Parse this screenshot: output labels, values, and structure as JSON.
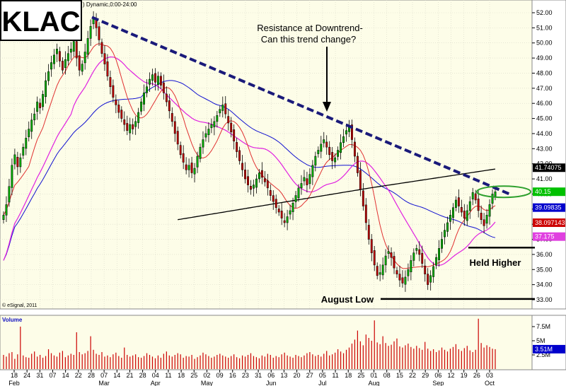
{
  "chart_data": {
    "type": "candlestick",
    "ticker": "KLAC",
    "header": ") Dynamic,0:00-24:00",
    "copyright": "© eSignal, 2011",
    "volume_label": "Volume",
    "y_ticks": [
      "52.00",
      "51.00",
      "50.00",
      "49.00",
      "48.00",
      "47.00",
      "46.00",
      "45.00",
      "44.00",
      "43.00",
      "42.00",
      "41.00",
      "40.00",
      "39.00",
      "38.00",
      "37.00",
      "36.00",
      "35.00",
      "34.00",
      "33.00"
    ],
    "ylim": [
      33,
      52.5
    ],
    "volume_ticks": [
      "7.5M",
      "5M",
      "2.5M"
    ],
    "volume_max": 9,
    "x_ticks": [
      "18",
      "24",
      "31",
      "07",
      "14",
      "22",
      "28",
      "07",
      "14",
      "21",
      "28",
      "04",
      "11",
      "18",
      "25",
      "02",
      "09",
      "16",
      "23",
      "31",
      "06",
      "13",
      "20",
      "27",
      "05",
      "11",
      "18",
      "25",
      "01",
      "08",
      "15",
      "22",
      "29",
      "06",
      "12",
      "19",
      "26",
      "03"
    ],
    "months": [
      {
        "label": "Feb",
        "tick": 0
      },
      {
        "label": "Mar",
        "tick": 7
      },
      {
        "label": "Apr",
        "tick": 11
      },
      {
        "label": "May",
        "tick": 15
      },
      {
        "label": "Jun",
        "tick": 20
      },
      {
        "label": "Jul",
        "tick": 24
      },
      {
        "label": "Aug",
        "tick": 28
      },
      {
        "label": "Sep",
        "tick": 33
      },
      {
        "label": "Oct",
        "tick": 37
      }
    ],
    "price_tags": [
      {
        "label": "41.74075",
        "value": 41.74,
        "bg": "#000000",
        "fg": "#ffffff"
      },
      {
        "label": "40.15",
        "value": 40.15,
        "bg": "#00c000",
        "fg": "#ffffff"
      },
      {
        "label": "39.09835",
        "value": 39.1,
        "bg": "#0000cc",
        "fg": "#ffffff"
      },
      {
        "label": "38.097143",
        "value": 38.1,
        "bg": "#cc0000",
        "fg": "#ffffff"
      },
      {
        "label": "37.175",
        "value": 37.18,
        "bg": "#e040e0",
        "fg": "#ffffff"
      }
    ],
    "colors": {
      "up": "#00b000",
      "down": "#c00000",
      "ma_short": "#e03030",
      "ma_mid": "#e020e0",
      "ma_long": "#1010d0",
      "ma_200": "#000000",
      "trendline": "#1a1a7a",
      "ellipse": "#2ea02e",
      "volume": "#cc0000"
    },
    "closes": [
      38.6,
      39.3,
      40.5,
      41.9,
      42.6,
      41.8,
      42.4,
      43.1,
      43.7,
      44.3,
      44.9,
      45.3,
      46.1,
      45.7,
      46.6,
      47.5,
      48.1,
      48.7,
      49.2,
      49.6,
      48.8,
      48.2,
      48.9,
      49.3,
      49.6,
      50.1,
      49.0,
      48.2,
      48.6,
      49.4,
      50.3,
      51.1,
      51.7,
      51.0,
      50.2,
      49.3,
      48.6,
      47.8,
      47.1,
      46.4,
      45.9,
      45.4,
      45.0,
      44.6,
      44.2,
      44.6,
      44.3,
      44.8,
      45.4,
      46.1,
      46.7,
      47.1,
      47.6,
      47.9,
      47.4,
      47.8,
      47.2,
      46.7,
      46.1,
      45.5,
      44.8,
      44.0,
      43.3,
      42.6,
      42.1,
      41.6,
      41.9,
      41.4,
      41.7,
      42.5,
      43.1,
      43.6,
      44.0,
      44.3,
      44.6,
      44.8,
      45.2,
      45.6,
      45.9,
      45.3,
      44.7,
      44.1,
      43.5,
      42.8,
      42.2,
      41.6,
      41.0,
      40.6,
      40.3,
      40.6,
      41.0,
      41.4,
      41.1,
      40.8,
      40.4,
      39.9,
      39.5,
      39.1,
      38.8,
      38.4,
      38.1,
      38.5,
      38.9,
      39.4,
      39.9,
      40.4,
      40.7,
      41.1,
      40.6,
      41.3,
      41.9,
      42.5,
      42.9,
      43.3,
      43.6,
      43.1,
      42.6,
      42.2,
      42.4,
      42.9,
      43.4,
      43.8,
      44.2,
      44.5,
      43.6,
      42.5,
      41.4,
      40.3,
      39.2,
      38.1,
      37.0,
      36.1,
      35.3,
      34.6,
      34.8,
      35.3,
      35.9,
      36.2,
      35.8,
      35.1,
      34.7,
      34.3,
      34.1,
      34.5,
      35.0,
      35.6,
      36.1,
      36.4,
      36.0,
      35.4,
      34.7,
      34.0,
      34.6,
      35.2,
      35.8,
      36.4,
      37.0,
      37.6,
      38.1,
      38.6,
      39.1,
      39.6,
      39.2,
      38.8,
      38.4,
      38.9,
      39.5,
      40.1,
      39.6,
      38.9,
      38.3,
      37.9,
      38.6,
      39.3,
      40.0,
      40.15
    ],
    "volumes": [
      2.5,
      2.2,
      2.8,
      3.0,
      1.8,
      2.6,
      7.5,
      2.4,
      2.1,
      2.0,
      2.7,
      3.1,
      2.2,
      2.5,
      2.0,
      2.3,
      3.5,
      2.8,
      2.4,
      2.2,
      2.9,
      3.2,
      2.1,
      2.4,
      2.7,
      2.5,
      6.5,
      3.0,
      2.6,
      2.8,
      3.2,
      5.8,
      3.4,
      2.7,
      2.5,
      3.0,
      2.2,
      2.4,
      2.1,
      2.6,
      2.9,
      2.3,
      2.0,
      3.8,
      2.5,
      2.2,
      2.4,
      2.6,
      2.1,
      2.0,
      2.3,
      2.8,
      2.5,
      2.2,
      1.9,
      2.4,
      2.0,
      2.7,
      3.1,
      2.4,
      2.2,
      2.5,
      2.8,
      2.6,
      2.0,
      2.3,
      2.2,
      2.5,
      1.8,
      2.1,
      2.4,
      2.9,
      2.6,
      2.3,
      2.0,
      2.2,
      2.5,
      2.7,
      2.4,
      2.2,
      2.0,
      2.3,
      2.6,
      2.1,
      1.9,
      2.4,
      2.2,
      2.5,
      2.8,
      2.3,
      2.1,
      1.9,
      2.4,
      2.2,
      2.7,
      2.5,
      2.0,
      2.3,
      2.1,
      2.6,
      2.9,
      2.4,
      2.2,
      2.0,
      2.5,
      2.3,
      2.1,
      2.4,
      2.8,
      3.0,
      2.6,
      2.3,
      2.5,
      2.2,
      2.7,
      3.2,
      2.4,
      2.6,
      2.9,
      3.5,
      3.1,
      2.8,
      3.4,
      3.8,
      4.5,
      5.2,
      6.8,
      4.9,
      4.2,
      6.1,
      5.5,
      5.0,
      8.6,
      4.7,
      4.4,
      5.8,
      4.6,
      4.1,
      4.3,
      4.9,
      5.4,
      4.0,
      3.8,
      4.2,
      4.5,
      3.9,
      3.6,
      4.1,
      3.7,
      3.4,
      4.8,
      3.6,
      3.2,
      3.5,
      3.0,
      3.3,
      3.8,
      3.4,
      3.1,
      3.6,
      3.9,
      4.4,
      3.5,
      3.2,
      3.7,
      4.1,
      3.3,
      3.0,
      3.4,
      8.9,
      4.6,
      3.8,
      4.2,
      3.9,
      3.6,
      3.51
    ]
  },
  "annotations": {
    "resistance": "Resistance at Downtrend-",
    "question": "Can this trend change?",
    "held_higher": "Held Higher",
    "august_low": "August Low"
  }
}
